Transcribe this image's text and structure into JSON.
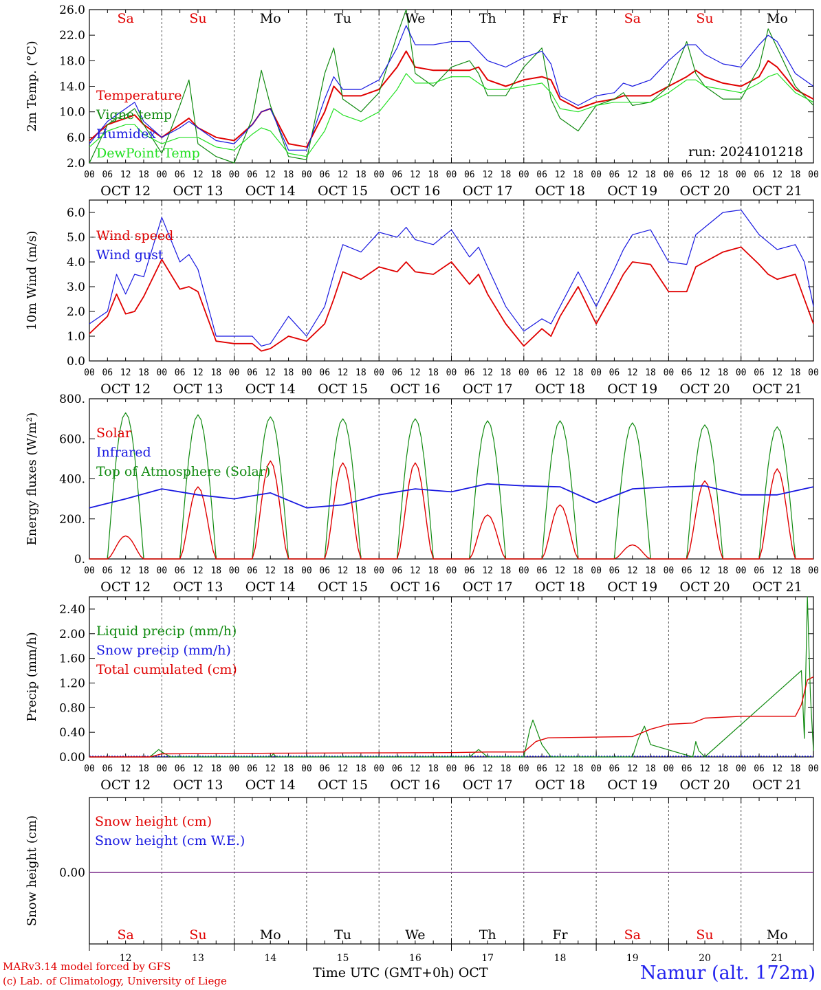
{
  "footer": {
    "model": "MARv3.14 model forced by GFS",
    "copyright": "(c) Lab. of Climatology, University of Liege",
    "xlabel": "Time UTC (GMT+0h) OCT",
    "station": "Namur (alt. 172m)"
  },
  "colors": {
    "red": "#e00000",
    "green_dark": "#108a10",
    "green_light": "#22e022",
    "blue": "#1818e0",
    "purple": "#7a2a8a",
    "grey": "#888888"
  },
  "chart_data": [
    {
      "type": "line",
      "name": "temperature",
      "ylabel": "2m Temp. (°C)",
      "ylim": [
        2,
        26
      ],
      "yticks": [
        "2.0",
        "6.0",
        "10.0",
        "14.0",
        "18.0",
        "22.0",
        "26.0"
      ],
      "annotation": "run: 2024101218",
      "weekdays": [
        "Sa",
        "Su",
        "Mo",
        "Tu",
        "We",
        "Th",
        "Fr",
        "Sa",
        "Su",
        "Mo"
      ],
      "day_labels": [
        "OCT 12",
        "OCT 13",
        "OCT 14",
        "OCT 15",
        "OCT 16",
        "OCT 17",
        "OCT 18",
        "OCT 19",
        "OCT 20",
        "OCT 21"
      ],
      "hour_ticks": [
        "00",
        "06",
        "12",
        "18"
      ],
      "x_hours": [
        0,
        6,
        9,
        12,
        15,
        18,
        24,
        30,
        33,
        36,
        42,
        48,
        54,
        57,
        60,
        66,
        72,
        78,
        81,
        84,
        90,
        96,
        102,
        105,
        108,
        114,
        120,
        126,
        129,
        132,
        138,
        144,
        150,
        153,
        156,
        162,
        168,
        174,
        177,
        180,
        186,
        192,
        198,
        201,
        204,
        210,
        216,
        222,
        225,
        228,
        234,
        240
      ],
      "series": [
        {
          "name": "Temperature",
          "color": "red",
          "values": [
            5.5,
            8.0,
            8.5,
            9.0,
            9.5,
            8.0,
            6.0,
            8.0,
            9.0,
            7.5,
            6.0,
            5.5,
            8.0,
            10.0,
            10.5,
            5.0,
            4.5,
            10.0,
            14.0,
            12.5,
            12.5,
            13.5,
            17.0,
            19.5,
            17.0,
            16.5,
            16.5,
            16.5,
            17.0,
            15.0,
            14.0,
            15.0,
            15.5,
            15.0,
            12.0,
            10.5,
            11.5,
            12.0,
            12.5,
            12.5,
            12.5,
            14.0,
            15.5,
            16.5,
            15.5,
            14.5,
            14.0,
            15.5,
            18.0,
            17.0,
            13.5,
            12.0
          ]
        },
        {
          "name": "Vigne temp",
          "color": "green_dark",
          "values": [
            2.0,
            8.0,
            9.0,
            9.5,
            10.5,
            8.0,
            3.5,
            11.0,
            15.0,
            5.0,
            3.0,
            2.0,
            9.0,
            16.5,
            11.0,
            3.0,
            2.5,
            16.0,
            20.0,
            12.0,
            10.0,
            13.0,
            22.0,
            26.0,
            16.0,
            14.0,
            17.0,
            18.0,
            16.0,
            12.5,
            12.5,
            17.0,
            20.0,
            12.0,
            9.0,
            7.0,
            11.0,
            12.0,
            13.0,
            11.0,
            11.5,
            14.0,
            21.0,
            16.0,
            14.0,
            12.0,
            12.0,
            17.0,
            23.0,
            20.0,
            14.0,
            11.0
          ]
        },
        {
          "name": "Humidex",
          "color": "blue",
          "values": [
            5.0,
            8.5,
            9.5,
            10.5,
            11.5,
            8.5,
            6.0,
            7.5,
            8.5,
            7.5,
            5.5,
            5.0,
            8.0,
            10.0,
            10.5,
            4.0,
            4.0,
            12.0,
            15.5,
            13.5,
            13.5,
            15.0,
            20.0,
            23.5,
            20.5,
            20.5,
            21.0,
            21.0,
            19.5,
            18.0,
            17.0,
            18.5,
            19.5,
            17.5,
            12.5,
            11.0,
            12.5,
            13.0,
            14.5,
            14.0,
            15.0,
            18.0,
            20.5,
            20.5,
            19.0,
            17.5,
            17.0,
            20.5,
            22.0,
            21.0,
            16.0,
            14.0
          ]
        },
        {
          "name": "DewPoint Temp",
          "color": "green_light",
          "values": [
            4.5,
            7.0,
            7.5,
            8.0,
            8.0,
            6.5,
            5.0,
            6.0,
            6.0,
            6.0,
            4.5,
            4.0,
            6.5,
            7.5,
            7.0,
            3.5,
            3.0,
            7.0,
            10.5,
            9.5,
            8.5,
            10.0,
            13.5,
            16.0,
            14.5,
            14.5,
            15.5,
            15.5,
            14.5,
            13.5,
            13.5,
            14.0,
            14.5,
            13.0,
            10.5,
            10.0,
            11.0,
            11.5,
            11.5,
            11.5,
            11.5,
            13.0,
            15.0,
            15.0,
            14.0,
            13.5,
            13.0,
            14.5,
            15.5,
            16.0,
            13.0,
            11.5
          ]
        }
      ]
    },
    {
      "type": "line",
      "name": "wind",
      "ylabel": "10m Wind (m/s)",
      "ylim": [
        0,
        6.5
      ],
      "yticks": [
        "0.0",
        "1.0",
        "2.0",
        "3.0",
        "4.0",
        "5.0",
        "6.0"
      ],
      "reference_line": 5.0,
      "day_labels": [
        "OCT 12",
        "OCT 13",
        "OCT 14",
        "OCT 15",
        "OCT 16",
        "OCT 17",
        "OCT 18",
        "OCT 19",
        "OCT 20",
        "OCT 21"
      ],
      "x_hours": [
        0,
        6,
        9,
        12,
        15,
        18,
        24,
        30,
        33,
        36,
        42,
        48,
        54,
        57,
        60,
        66,
        72,
        78,
        81,
        84,
        90,
        96,
        102,
        105,
        108,
        114,
        120,
        126,
        129,
        132,
        138,
        144,
        150,
        153,
        156,
        162,
        168,
        174,
        177,
        180,
        186,
        192,
        198,
        201,
        204,
        210,
        216,
        222,
        225,
        228,
        234,
        237,
        240
      ],
      "series": [
        {
          "name": "Wind speed",
          "color": "red",
          "values": [
            1.1,
            1.8,
            2.7,
            1.9,
            2.0,
            2.6,
            4.1,
            2.9,
            3.0,
            2.8,
            0.8,
            0.7,
            0.7,
            0.4,
            0.5,
            1.0,
            0.8,
            1.5,
            2.5,
            3.6,
            3.3,
            3.8,
            3.6,
            4.0,
            3.6,
            3.5,
            4.0,
            3.1,
            3.5,
            2.7,
            1.5,
            0.6,
            1.3,
            1.0,
            1.8,
            3.0,
            1.5,
            2.8,
            3.5,
            4.0,
            3.9,
            2.8,
            2.8,
            3.8,
            4.0,
            4.4,
            4.6,
            3.9,
            3.5,
            3.3,
            3.5,
            2.5,
            1.5
          ]
        },
        {
          "name": "Wind gust",
          "color": "blue",
          "values": [
            1.5,
            2.0,
            3.5,
            2.7,
            3.5,
            3.4,
            5.8,
            4.0,
            4.3,
            3.7,
            1.0,
            1.0,
            1.0,
            0.6,
            0.7,
            1.8,
            1.0,
            2.2,
            3.5,
            4.7,
            4.4,
            5.2,
            5.0,
            5.4,
            4.9,
            4.7,
            5.3,
            4.2,
            4.6,
            3.8,
            2.2,
            1.2,
            1.7,
            1.5,
            2.2,
            3.6,
            2.2,
            3.7,
            4.5,
            5.1,
            5.3,
            4.0,
            3.9,
            5.1,
            5.4,
            6.0,
            6.1,
            5.1,
            4.8,
            4.5,
            4.7,
            4.0,
            2.2
          ]
        }
      ]
    },
    {
      "type": "line",
      "name": "energy",
      "ylabel": "Energy fluxes (W/m²)",
      "ylim": [
        0,
        800
      ],
      "yticks": [
        "0.",
        "200.",
        "400.",
        "600.",
        "800."
      ],
      "day_labels": [
        "OCT 12",
        "OCT 13",
        "OCT 14",
        "OCT 15",
        "OCT 16",
        "OCT 17",
        "OCT 18",
        "OCT 19",
        "OCT 20",
        "OCT 21"
      ],
      "daily_toa_peak": [
        730,
        720,
        710,
        700,
        700,
        690,
        690,
        680,
        670,
        660
      ],
      "daily_solar_peak": [
        115,
        360,
        490,
        480,
        480,
        220,
        270,
        70,
        390,
        450
      ],
      "infrared_x_hours": [
        0,
        12,
        24,
        36,
        48,
        60,
        72,
        84,
        96,
        108,
        120,
        132,
        144,
        156,
        168,
        180,
        192,
        204,
        216,
        228,
        240
      ],
      "series": [
        {
          "name": "Solar",
          "color": "red"
        },
        {
          "name": "Infrared",
          "color": "blue",
          "values": [
            255,
            300,
            350,
            320,
            300,
            330,
            255,
            270,
            320,
            350,
            335,
            375,
            365,
            360,
            280,
            350,
            360,
            365,
            320,
            320,
            360
          ]
        },
        {
          "name": "Top of Atmosphere (Solar)",
          "color": "green_dark"
        }
      ]
    },
    {
      "type": "line",
      "name": "precip",
      "ylabel": "Precip (mm/h)",
      "ylim": [
        0,
        2.6
      ],
      "yticks": [
        "0.00",
        "0.40",
        "0.80",
        "1.20",
        "1.60",
        "2.00",
        "2.40"
      ],
      "day_labels": [
        "OCT 12",
        "OCT 13",
        "OCT 14",
        "OCT 15",
        "OCT 16",
        "OCT 17",
        "OCT 18",
        "OCT 19",
        "OCT 20",
        "OCT 21"
      ],
      "liquid_x_hours": [
        0,
        20,
        23,
        24,
        27,
        30,
        60,
        61,
        62,
        120,
        126,
        129,
        132,
        144,
        146,
        147,
        150,
        153,
        180,
        182,
        184,
        186,
        200,
        201,
        202,
        204,
        236,
        237,
        238,
        239,
        240
      ],
      "series": [
        {
          "name": "Liquid precip (mm/h)",
          "color": "green_dark",
          "values": [
            0,
            0,
            0.12,
            0.08,
            0,
            0,
            0,
            0.05,
            0,
            0,
            0,
            0.12,
            0,
            0,
            0.45,
            0.6,
            0.2,
            0,
            0,
            0.3,
            0.5,
            0.2,
            0,
            0.25,
            0.1,
            0,
            1.4,
            0.3,
            2.6,
            1.0,
            0.1
          ]
        },
        {
          "name": "Snow precip (mm/h)",
          "color": "blue",
          "values": []
        },
        {
          "name": "Total cumulated (cm)",
          "color": "red",
          "x_hours": [
            0,
            20,
            24,
            60,
            120,
            132,
            144,
            148,
            152,
            180,
            186,
            192,
            200,
            204,
            216,
            234,
            236,
            238,
            240
          ],
          "values": [
            0,
            0,
            0.05,
            0.06,
            0.07,
            0.08,
            0.08,
            0.25,
            0.31,
            0.33,
            0.45,
            0.53,
            0.55,
            0.63,
            0.66,
            0.66,
            0.85,
            1.25,
            1.3
          ]
        }
      ]
    },
    {
      "type": "line",
      "name": "snow",
      "ylabel": "Snow height (cm)",
      "yticks": [
        "0.00"
      ],
      "weekdays": [
        "Sa",
        "Su",
        "Mo",
        "Tu",
        "We",
        "Th",
        "Fr",
        "Sa",
        "Su",
        "Mo"
      ],
      "day_numbers": [
        "12",
        "13",
        "14",
        "15",
        "16",
        "17",
        "18",
        "19",
        "20",
        "21"
      ],
      "series": [
        {
          "name": "Snow height (cm)",
          "color": "red",
          "values": [
            0,
            0
          ]
        },
        {
          "name": "Snow height (cm W.E.)",
          "color": "blue",
          "values": [
            0,
            0
          ]
        }
      ]
    }
  ]
}
